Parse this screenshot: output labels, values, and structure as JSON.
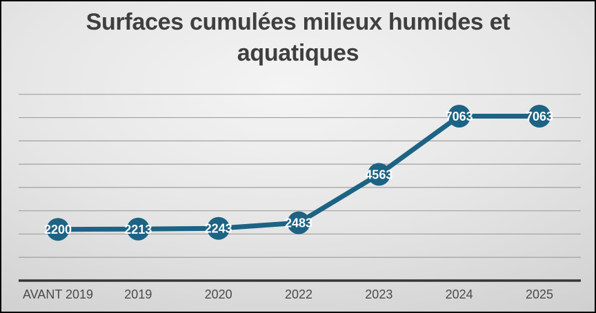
{
  "chart_data": {
    "type": "line",
    "title": "Surfaces cumulées milieux humides et aquatiques",
    "categories": [
      "AVANT 2019",
      "2019",
      "2020",
      "2022",
      "2023",
      "2024",
      "2025"
    ],
    "values": [
      2200,
      2213,
      2243,
      2483,
      4563,
      7063,
      7063
    ],
    "data_labels": [
      "2200",
      "2213",
      "2243",
      "2483",
      "4563",
      "7063",
      "7063"
    ],
    "series": [
      {
        "name": "Surfaces cumulées milieux humides et aquatiques",
        "values": [
          2200,
          2213,
          2243,
          2483,
          4563,
          7063,
          7063
        ]
      }
    ],
    "xlabel": "",
    "ylabel": "",
    "ylim": [
      0,
      8000
    ],
    "gridline_interval": 1000,
    "grid": "horizontal",
    "legend_position": "none",
    "y_axis_labels_visible": false,
    "data_labels_visible": true,
    "marker_style": "filled-circle"
  },
  "colors": {
    "line": "#1c6384",
    "marker": "#1c6384",
    "point_label": "#ffffff",
    "title": "#3f3f3f",
    "tick_label": "#4a4a4a",
    "gridline": "#a0a0a0",
    "axis_line": "#363636",
    "background_center": "#f4f4f4",
    "background_edge": "#c3c3c3",
    "border": "#000000"
  }
}
